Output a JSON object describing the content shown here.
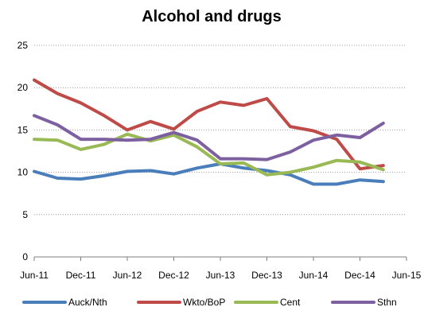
{
  "chart_data": {
    "type": "line",
    "title": "Alcohol and drugs",
    "xlabel": "",
    "ylabel": "",
    "ylim": [
      0,
      25
    ],
    "yticks": [
      0,
      5,
      10,
      15,
      20,
      25
    ],
    "x_tick_labels": [
      "Jun-11",
      "Dec-11",
      "Jun-12",
      "Dec-12",
      "Jun-13",
      "Dec-13",
      "Jun-14",
      "Dec-14",
      "Jun-15"
    ],
    "x_range": [
      0,
      48
    ],
    "x": [
      0,
      3,
      6,
      9,
      12,
      15,
      18,
      21,
      24,
      27,
      30,
      33,
      36,
      39,
      42,
      45
    ],
    "grid": "horizontal dotted",
    "legend_position": "bottom",
    "series": [
      {
        "name": "Auck/Nth",
        "color": "#4a7ebb",
        "values": [
          10.1,
          9.3,
          9.2,
          9.6,
          10.1,
          10.2,
          9.8,
          10.5,
          11.0,
          10.5,
          10.2,
          9.7,
          8.6,
          8.6,
          9.1,
          8.9
        ]
      },
      {
        "name": "Wkto/BoP",
        "color": "#be4b48",
        "values": [
          20.9,
          19.3,
          18.2,
          16.7,
          15.0,
          16.0,
          15.1,
          17.2,
          18.3,
          17.9,
          18.7,
          15.4,
          14.9,
          13.9,
          10.4,
          10.8
        ]
      },
      {
        "name": "Cent",
        "color": "#98b954",
        "values": [
          13.9,
          13.8,
          12.7,
          13.3,
          14.5,
          13.7,
          14.4,
          13.0,
          11.0,
          11.1,
          9.7,
          10.0,
          10.6,
          11.4,
          11.2,
          10.3
        ]
      },
      {
        "name": "Sthn",
        "color": "#7d60a0",
        "values": [
          16.7,
          15.6,
          13.9,
          13.9,
          13.8,
          13.9,
          14.7,
          13.8,
          11.6,
          11.6,
          11.5,
          12.4,
          13.8,
          14.4,
          14.1,
          15.8
        ]
      }
    ]
  }
}
